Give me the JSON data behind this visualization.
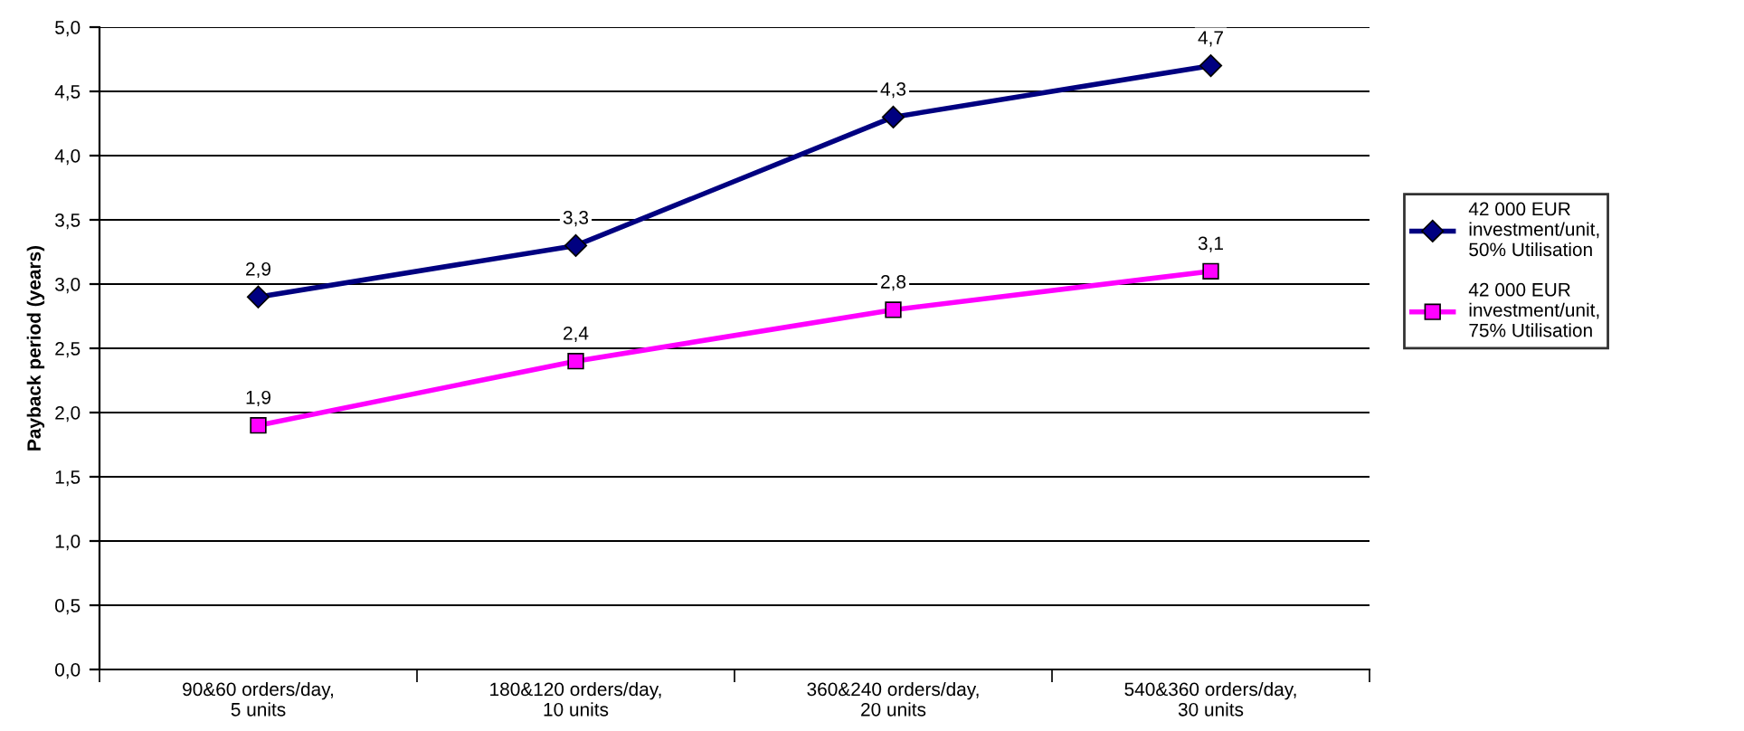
{
  "chart_data": {
    "type": "line",
    "ylabel": "Payback period (years)",
    "categories": [
      "90&60 orders/day,\n5 units",
      "180&120 orders/day,\n10 units",
      "360&240 orders/day,\n20 units",
      "540&360 orders/day,\n30 units"
    ],
    "series": [
      {
        "name": "42 000 EUR\ninvestment/unit,\n50% Utilisation",
        "color": "#000080",
        "marker": "diamond",
        "values": [
          2.9,
          3.3,
          4.3,
          4.7
        ],
        "value_labels": [
          "2,9",
          "3,3",
          "4,3",
          "4,7"
        ]
      },
      {
        "name": "42 000 EUR\ninvestment/unit,\n75% Utilisation",
        "color": "#ff00ff",
        "marker": "square",
        "values": [
          1.9,
          2.4,
          2.8,
          3.1
        ],
        "value_labels": [
          "1,9",
          "2,4",
          "2,8",
          "3,1"
        ]
      }
    ],
    "ylim": [
      0,
      5
    ],
    "yticks": [
      {
        "value": 0,
        "label": "0,0"
      },
      {
        "value": 0.5,
        "label": "0,5"
      },
      {
        "value": 1,
        "label": "1,0"
      },
      {
        "value": 1.5,
        "label": "1,5"
      },
      {
        "value": 2,
        "label": "2,0"
      },
      {
        "value": 2.5,
        "label": "2,5"
      },
      {
        "value": 3,
        "label": "3,0"
      },
      {
        "value": 3.5,
        "label": "3,5"
      },
      {
        "value": 4,
        "label": "4,0"
      },
      {
        "value": 4.5,
        "label": "4,5"
      },
      {
        "value": 5,
        "label": "5,0"
      }
    ],
    "grid": "y",
    "legend": "right",
    "line_style": "solid"
  }
}
